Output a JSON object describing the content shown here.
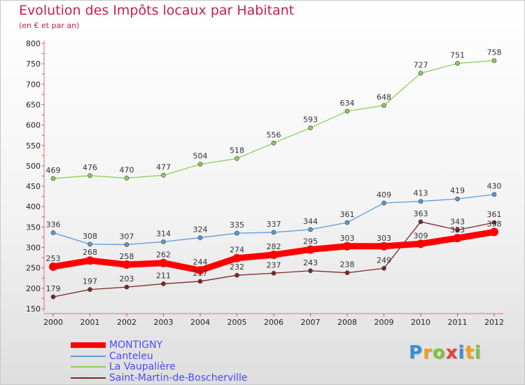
{
  "chart_data": {
    "type": "line",
    "title": "Evolution des Impôts locaux par Habitant",
    "subtitle": "(en € et par an)",
    "x": [
      "2000",
      "2001",
      "2002",
      "2003",
      "2004",
      "2005",
      "2006",
      "2007",
      "2008",
      "2009",
      "2010",
      "2011",
      "2012"
    ],
    "yticks": [
      150,
      200,
      250,
      300,
      350,
      400,
      450,
      500,
      550,
      600,
      650,
      700,
      750,
      800
    ],
    "ylim": [
      150,
      800
    ],
    "grid": false,
    "legend_position": "bottom-left",
    "series": [
      {
        "name": "MONTIGNY",
        "color": "#ff0000",
        "values": [
          253,
          268,
          258,
          262,
          244,
          274,
          282,
          295,
          303,
          303,
          309,
          323,
          338
        ]
      },
      {
        "name": "Canteleu",
        "color": "#5b9bd5",
        "values": [
          336,
          308,
          307,
          314,
          324,
          335,
          337,
          344,
          361,
          409,
          413,
          419,
          430
        ]
      },
      {
        "name": "La Vaupalière",
        "color": "#8ccf5a",
        "values": [
          469,
          476,
          470,
          477,
          504,
          518,
          556,
          593,
          634,
          648,
          727,
          751,
          758
        ]
      },
      {
        "name": "Saint-Martin-de-Boscherville",
        "color": "#7a2a2a",
        "values": [
          179,
          197,
          203,
          211,
          217,
          232,
          237,
          243,
          238,
          249,
          363,
          343,
          361
        ]
      }
    ]
  },
  "brand": {
    "letters": [
      {
        "ch": "P",
        "color": "#3a8fd6"
      },
      {
        "ch": "r",
        "color": "#f0a020"
      },
      {
        "ch": "o",
        "color": "#7cc242"
      },
      {
        "ch": "x",
        "color": "#e8403c"
      },
      {
        "ch": "i",
        "color": "#3a8fd6"
      },
      {
        "ch": "t",
        "color": "#f0a020"
      },
      {
        "ch": "i",
        "color": "#7cc242"
      }
    ]
  }
}
